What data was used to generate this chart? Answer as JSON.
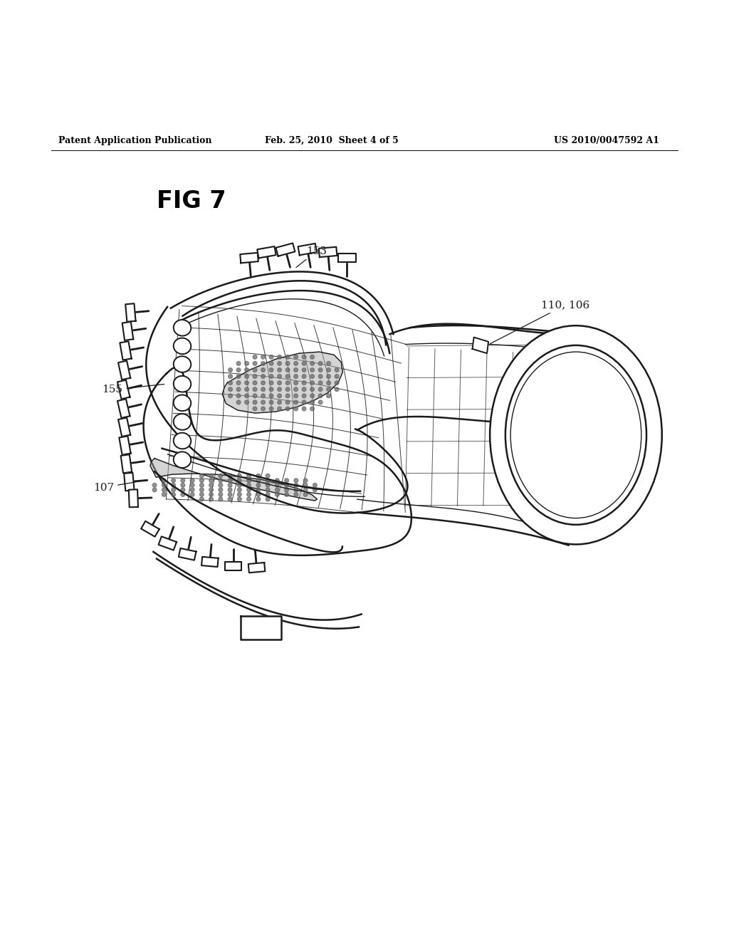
{
  "background_color": "#ffffff",
  "header_left": "Patent Application Publication",
  "header_center": "Feb. 25, 2010  Sheet 4 of 5",
  "header_right": "US 2010/0047592 A1",
  "fig_label": "FIG 7",
  "line_color": "#1a1a1a",
  "shading_color": "#aaaaaa",
  "shading_alpha": 0.5,
  "lw_main": 1.8,
  "lw_thin": 1.0,
  "lw_grid": 0.7
}
